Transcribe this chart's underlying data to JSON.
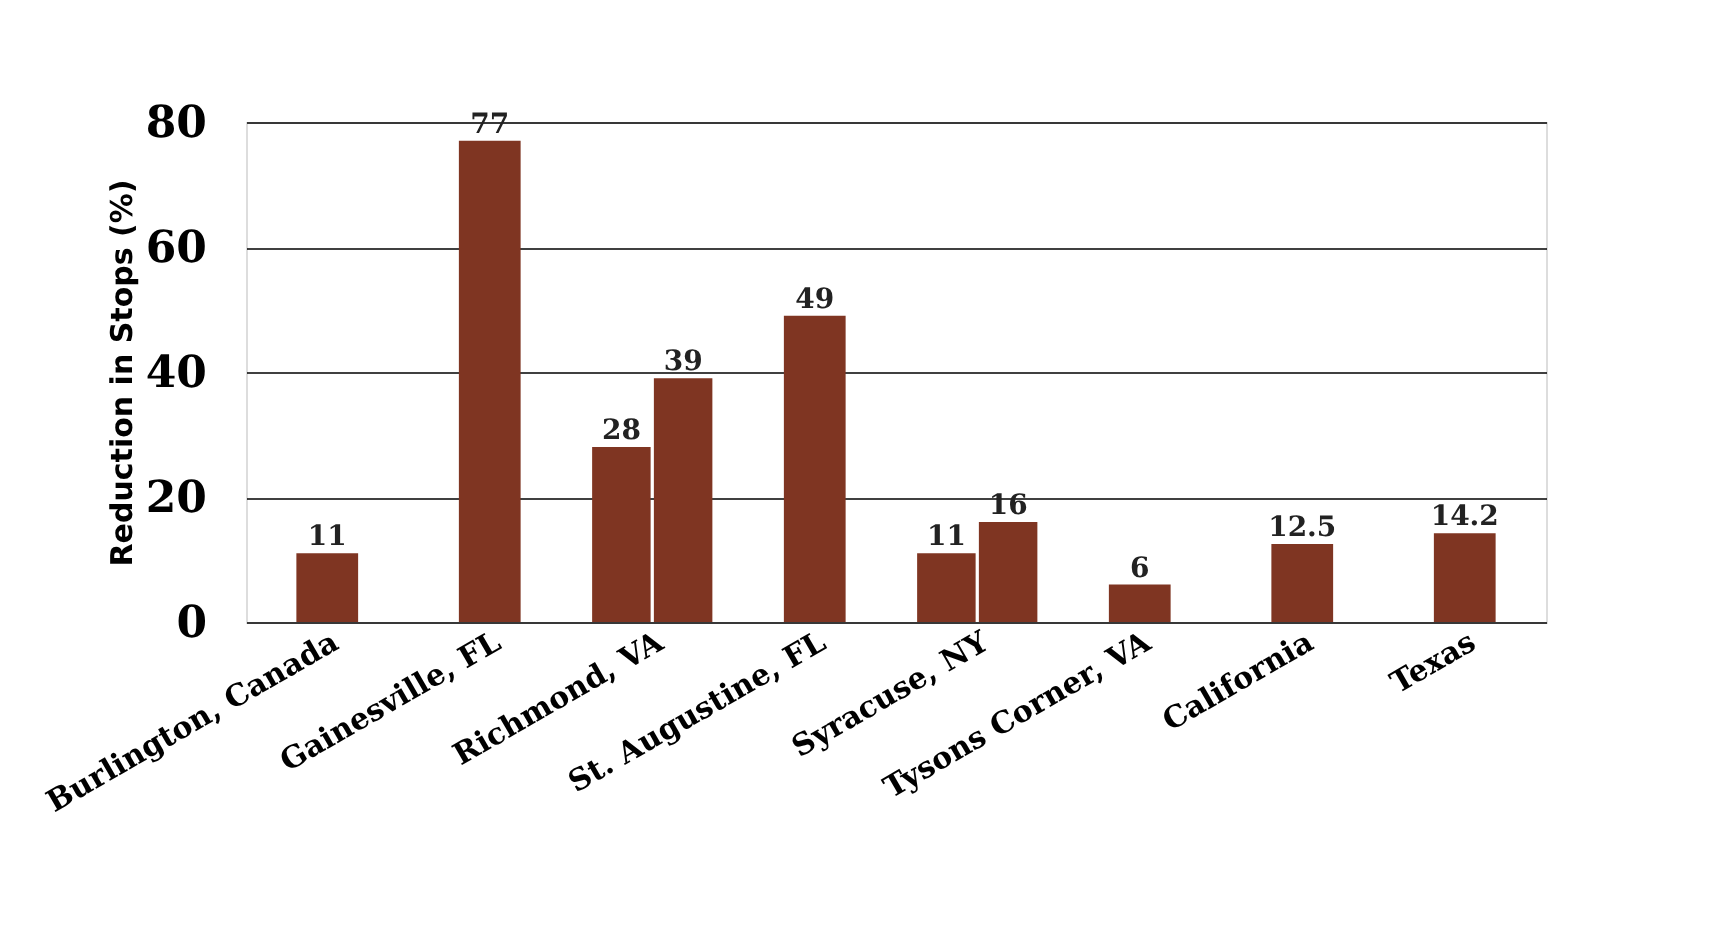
{
  "chart_data": {
    "type": "bar",
    "ylabel": "Reduction in Stops (%)",
    "categories": [
      "Burlington, Canada",
      "Gainesville, FL",
      "Richmond, VA",
      "St. Augustine, FL",
      "Syracuse, NY",
      "Tysons Corner, VA",
      "California",
      "Texas"
    ],
    "series": [
      {
        "color": "#7f3522",
        "values": [
          11,
          77,
          28,
          49,
          11,
          6,
          12.5,
          14.2
        ]
      },
      {
        "color": "#7f3522",
        "values": [
          null,
          null,
          39,
          null,
          16,
          null,
          null,
          null
        ]
      }
    ],
    "ylim": [
      0,
      80
    ],
    "yticks": [
      0,
      20,
      40,
      60,
      80
    ],
    "grid": "y",
    "data_labels": true
  }
}
